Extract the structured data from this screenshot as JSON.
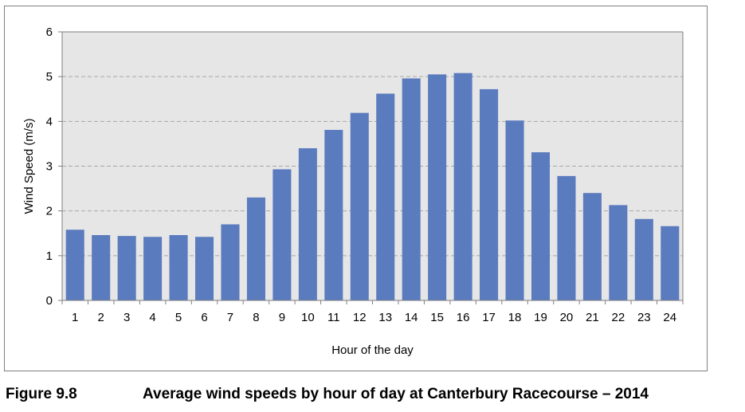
{
  "chart_data": {
    "type": "bar",
    "categories": [
      "1",
      "2",
      "3",
      "4",
      "5",
      "6",
      "7",
      "8",
      "9",
      "10",
      "11",
      "12",
      "13",
      "14",
      "15",
      "16",
      "17",
      "18",
      "19",
      "20",
      "21",
      "22",
      "23",
      "24"
    ],
    "values": [
      1.58,
      1.46,
      1.44,
      1.42,
      1.46,
      1.42,
      1.7,
      2.3,
      2.93,
      3.4,
      3.81,
      4.19,
      4.62,
      4.96,
      5.05,
      5.08,
      4.72,
      4.02,
      3.31,
      2.78,
      2.4,
      2.13,
      1.82,
      1.66
    ],
    "xlabel": "Hour of the day",
    "ylabel": "Wind Speed (m/s)",
    "ylim": [
      0,
      6
    ],
    "yticks": [
      "0",
      "1",
      "2",
      "3",
      "4",
      "5",
      "6"
    ],
    "grid": true,
    "bar_color": "#5b7bbf",
    "plot_background": "#e6e6e6",
    "grid_color": "#a6a6a6"
  },
  "caption": {
    "label": "Figure 9.8",
    "title": "Average wind speeds by hour of day at Canterbury Racecourse – 2014"
  }
}
